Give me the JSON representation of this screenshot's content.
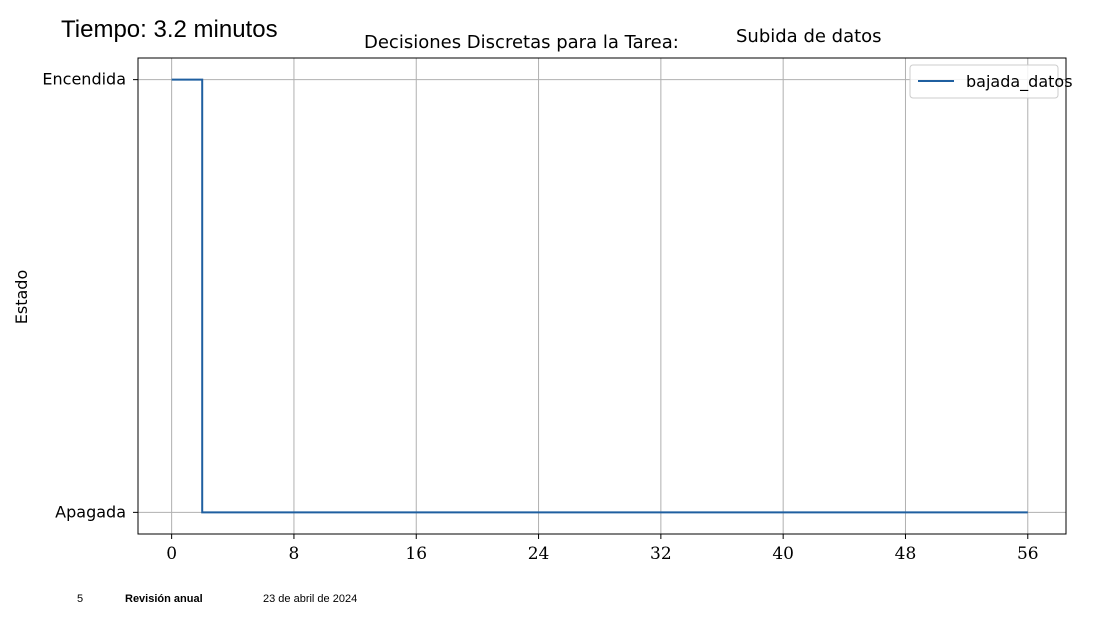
{
  "overlay": {
    "time_label_prefix": "Tiempo:",
    "time_value": "3.2",
    "time_unit": "minutos"
  },
  "footer": {
    "page_number": "5",
    "report_name": "Revisión anual",
    "date": "23 de abril de 2024"
  },
  "chart_data": {
    "type": "line",
    "drawstyle": "steps-post",
    "title_prefix": "Decisiones Discretas para la Tarea:",
    "title_task": "Subida de datos",
    "xlabel": "",
    "ylabel": "Estado",
    "xlim": [
      -2.2,
      58.5
    ],
    "ylim": [
      -0.05,
      1.05
    ],
    "x_ticks": [
      0,
      8,
      16,
      24,
      32,
      40,
      48,
      56
    ],
    "x_tick_labels": [
      "0",
      "8",
      "16",
      "24",
      "32",
      "40",
      "48",
      "56"
    ],
    "x_grid": [
      0,
      8,
      16,
      24,
      32,
      40,
      48,
      56
    ],
    "y_ticks": [
      0,
      1
    ],
    "y_tick_labels": [
      "Apagada",
      "Encendida"
    ],
    "grid": true,
    "legend": "top-right",
    "series": [
      {
        "name": "bajada_datos",
        "color": "#1f5fa0",
        "x": [
          0,
          2,
          56
        ],
        "y": [
          1,
          0,
          0
        ]
      }
    ]
  }
}
